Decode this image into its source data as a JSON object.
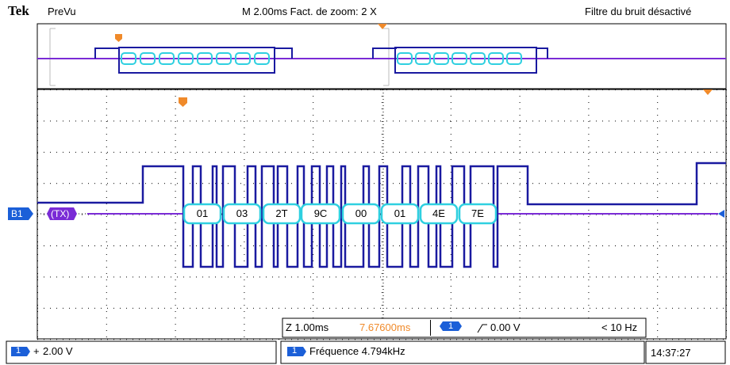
{
  "header": {
    "brand": "Tek",
    "status": "PreVu",
    "magnification": "M 2.00ms  Fact. de zoom: 2 X",
    "noise_filter": "Filtre du bruit désactivé"
  },
  "bus": {
    "label": "B1",
    "name": "(TX)",
    "decoded_bytes": [
      "01",
      "03",
      "2T",
      "9C",
      "00",
      "01",
      "4E",
      "7E"
    ]
  },
  "zoom_readout": {
    "timebase": "Z 1.00ms",
    "position": "7.67600ms",
    "trigger_channel": "1",
    "trigger_level": "0.00 V",
    "trigger_rate": "< 10 Hz"
  },
  "channel": {
    "number": "1",
    "scale": "2.00 V"
  },
  "measurement": {
    "channel": "1",
    "text": "Fréquence 4.794kHz"
  },
  "clock": "14:37:27",
  "colors": {
    "trace": "#1a1aa0",
    "bus": "#7a2bd6",
    "decode": "#2fd0e0",
    "marker": "#f08a2a",
    "channel_badge": "#1b5fd8"
  }
}
